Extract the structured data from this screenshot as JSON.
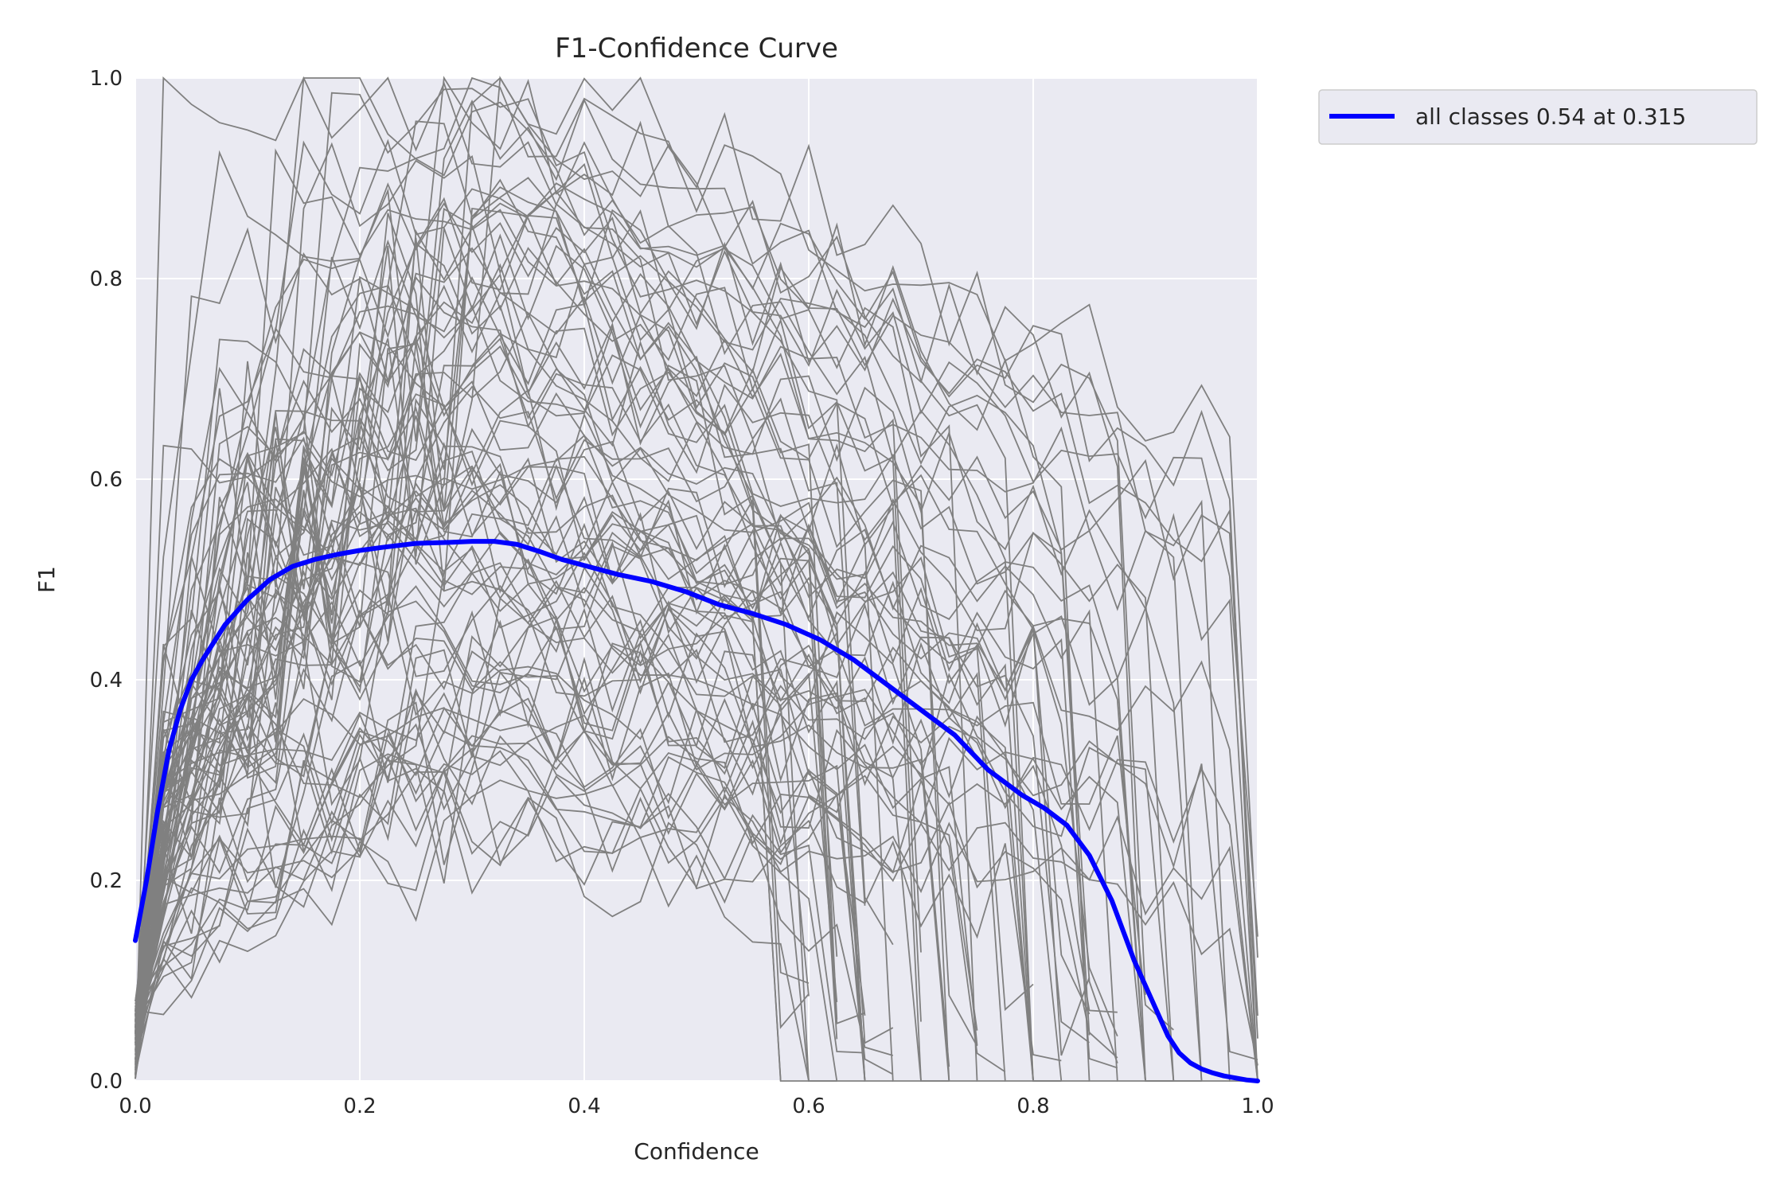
{
  "chart_data": {
    "type": "line",
    "title": "F1-Confidence Curve",
    "xlabel": "Confidence",
    "ylabel": "F1",
    "xlim": [
      0.0,
      1.0
    ],
    "ylim": [
      0.0,
      1.0
    ],
    "xticks": [
      "0.0",
      "0.2",
      "0.4",
      "0.6",
      "0.8",
      "1.0"
    ],
    "yticks": [
      "0.0",
      "0.2",
      "0.4",
      "0.6",
      "0.8",
      "1.0"
    ],
    "grid": true,
    "legend_position": "outside-top-right",
    "colors": {
      "all_classes": "#0000ff",
      "per_class": "#808080",
      "plot_background": "#eaeaf2",
      "grid": "#ffffff"
    },
    "series": [
      {
        "name": "all classes 0.54 at 0.315",
        "x": [
          0.0,
          0.01,
          0.02,
          0.03,
          0.04,
          0.05,
          0.06,
          0.08,
          0.1,
          0.12,
          0.14,
          0.16,
          0.18,
          0.2,
          0.22,
          0.25,
          0.28,
          0.3,
          0.32,
          0.34,
          0.36,
          0.38,
          0.4,
          0.43,
          0.46,
          0.49,
          0.52,
          0.55,
          0.58,
          0.61,
          0.64,
          0.67,
          0.7,
          0.73,
          0.76,
          0.79,
          0.81,
          0.83,
          0.85,
          0.87,
          0.89,
          0.91,
          0.92,
          0.93,
          0.94,
          0.95,
          0.96,
          0.97,
          0.98,
          0.99,
          1.0
        ],
        "y": [
          0.14,
          0.2,
          0.27,
          0.33,
          0.37,
          0.4,
          0.42,
          0.455,
          0.48,
          0.5,
          0.513,
          0.52,
          0.525,
          0.529,
          0.532,
          0.536,
          0.537,
          0.538,
          0.538,
          0.535,
          0.528,
          0.52,
          0.514,
          0.505,
          0.498,
          0.488,
          0.475,
          0.466,
          0.455,
          0.44,
          0.42,
          0.395,
          0.37,
          0.345,
          0.31,
          0.285,
          0.272,
          0.255,
          0.225,
          0.18,
          0.12,
          0.07,
          0.045,
          0.028,
          0.018,
          0.012,
          0.008,
          0.005,
          0.003,
          0.001,
          0.0
        ]
      }
    ]
  }
}
